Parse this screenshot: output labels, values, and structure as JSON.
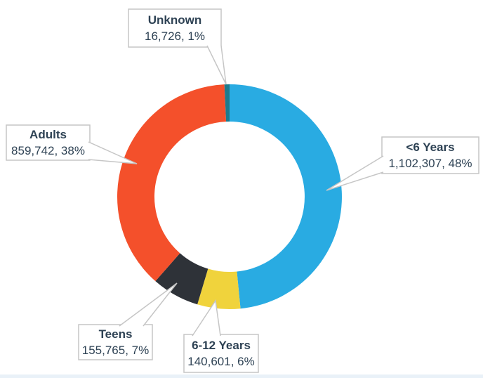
{
  "chart_data": {
    "type": "pie",
    "subtype": "donut",
    "title": "",
    "legend_position": "none",
    "direction": "clockwise",
    "start_angle_deg": 0,
    "categories": [
      "<6 Years",
      "6-12 Years",
      "Teens",
      "Adults",
      "Unknown"
    ],
    "values": [
      1102307,
      140601,
      155765,
      859742,
      16726
    ],
    "percent_labels": [
      48,
      6,
      7,
      38,
      1
    ],
    "segments": [
      {
        "label": "<6 Years",
        "value": 1102307,
        "pct": 48,
        "display": "1,102,307, 48%",
        "color": "#29ABE2"
      },
      {
        "label": "6-12 Years",
        "value": 140601,
        "pct": 6,
        "display": "140,601, 6%",
        "color": "#F0D33C"
      },
      {
        "label": "Teens",
        "value": 155765,
        "pct": 7,
        "display": "155,765, 7%",
        "color": "#2E3238"
      },
      {
        "label": "Adults",
        "value": 859742,
        "pct": 38,
        "display": "859,742, 38%",
        "color": "#F4502B"
      },
      {
        "label": "Unknown",
        "value": 16726,
        "pct": 1,
        "display": "16,726, 1%",
        "color": "#1D7A8C"
      }
    ]
  },
  "style": {
    "text_color": "#2E4254",
    "callout_border_color": "#C6C6C6",
    "callout_fill_color": "#FFFFFF",
    "bottom_bar_color": "#E9F1F8",
    "background_color": "#FFFFFF"
  }
}
